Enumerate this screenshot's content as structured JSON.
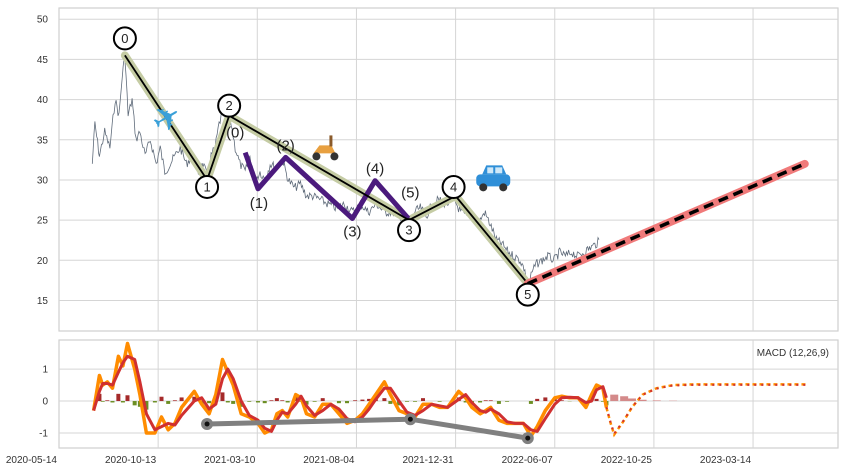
{
  "chart_data": [
    {
      "type": "line",
      "title": "",
      "x_unit": "days since 2020-05-14",
      "xlim": [
        0,
        1140
      ],
      "ylim": [
        11.2,
        51.4
      ],
      "grid": true,
      "x_ticks": [
        {
          "day": 0,
          "label": "2020-05-14"
        },
        {
          "day": 152,
          "label": "2020-10-13"
        },
        {
          "day": 300,
          "label": "2021-03-10"
        },
        {
          "day": 447,
          "label": "2021-08-04"
        },
        {
          "day": 596,
          "label": "2021-12-31"
        },
        {
          "day": 754,
          "label": "2022-06-07"
        },
        {
          "day": 894,
          "label": "2022-10-25"
        },
        {
          "day": 1034,
          "label": "2023-03-14"
        }
      ],
      "y_ticks": [
        15,
        20,
        25,
        30,
        35,
        40,
        45,
        50
      ],
      "price": {
        "color": "#5f6b7a",
        "x": [
          51,
          55,
          62,
          70,
          78,
          86,
          92,
          97,
          101,
          106,
          112,
          118,
          124,
          132,
          140,
          149,
          155,
          162,
          170,
          177,
          185,
          194,
          203,
          212,
          219,
          225,
          231,
          237,
          243,
          249,
          255,
          261,
          267,
          274,
          282,
          289,
          297,
          304,
          312,
          319,
          328,
          337,
          346,
          355,
          364,
          373,
          382,
          394,
          405,
          417,
          429,
          441,
          453,
          465,
          477,
          489,
          501,
          513,
          525,
          534,
          543,
          552,
          561,
          570,
          582,
          594,
          604,
          613,
          623,
          632,
          642,
          651,
          661,
          670,
          680,
          689,
          699,
          705,
          711,
          718,
          724,
          734,
          743,
          753,
          761,
          769,
          778,
          786,
          795,
          803,
          812,
          818
        ],
        "y": [
          32,
          37,
          33,
          36,
          34,
          40,
          38,
          43,
          45.5,
          38,
          40,
          35,
          36,
          33,
          35,
          32,
          34,
          31,
          32,
          33,
          34,
          32,
          33,
          31,
          32,
          30.5,
          33,
          34,
          37,
          38.5,
          37,
          37,
          34,
          32,
          31,
          33,
          30,
          31,
          30,
          32,
          31.5,
          32.5,
          30,
          29,
          29.5,
          28,
          28,
          27.5,
          27,
          26.5,
          27,
          26,
          27,
          26,
          27,
          26,
          26,
          25.5,
          24,
          26,
          26.5,
          25.5,
          27,
          27.5,
          27,
          27.5,
          26,
          25.5,
          26,
          24.5,
          26,
          24.5,
          22.5,
          22,
          21,
          20.5,
          20,
          19,
          16.8,
          18.5,
          19.5,
          20,
          20.5,
          20,
          21,
          20.5,
          21,
          20.5,
          21,
          21.5,
          22,
          22.5
        ]
      },
      "main_wave": {
        "color": "#000000",
        "highlight": "#c5cca4",
        "points": [
          {
            "label": "0",
            "day": 101,
            "value": 45.5
          },
          {
            "label": "1",
            "day": 225,
            "value": 30.0
          },
          {
            "label": "2",
            "day": 258,
            "value": 38.0
          },
          {
            "label": "3",
            "day": 526,
            "value": 25.0
          },
          {
            "label": "4",
            "day": 596,
            "value": 28.0
          },
          {
            "label": "5",
            "day": 711,
            "value": 17.1
          }
        ]
      },
      "sub_wave": {
        "color": "#4b1a7d",
        "points": [
          {
            "label": "(0)",
            "day": 282,
            "value": 33.4
          },
          {
            "label": "(1)",
            "day": 301,
            "value": 28.9
          },
          {
            "label": "(2)",
            "day": 342,
            "value": 32.8
          },
          {
            "label": "(3)",
            "day": 441,
            "value": 25.2
          },
          {
            "label": "(4)",
            "day": 475,
            "value": 29.9
          },
          {
            "label": "(5)",
            "day": 525,
            "value": 25.2
          }
        ]
      },
      "projection": {
        "color": "#f07a7a",
        "dash_color": "#000000",
        "start": {
          "day": 711,
          "value": 17.1
        },
        "end": {
          "day": 1107,
          "value": 32.0
        }
      },
      "markers": [
        {
          "icon": "airplane-icon",
          "day": 166,
          "value": 37.5
        },
        {
          "icon": "scooter-icon",
          "day": 401,
          "value": 33.8
        },
        {
          "icon": "car-icon",
          "day": 656,
          "value": 30.2
        }
      ]
    },
    {
      "type": "line",
      "title": "MACD (12,26,9)",
      "x_unit": "days since 2020-05-14",
      "ylim": [
        -1.47,
        1.91
      ],
      "y_ticks": [
        -1,
        0,
        1
      ],
      "grid": true,
      "macd_color": "#ff8c00",
      "signal_color": "#d03030",
      "hist_pos_color": "#a52a2a",
      "hist_neg_color": "#6b8e23",
      "x": [
        53,
        62,
        67,
        74,
        82,
        91,
        98,
        105,
        116,
        124,
        134,
        147,
        157,
        167,
        177,
        187,
        206,
        217,
        228,
        238,
        248,
        256,
        264,
        276,
        288,
        301,
        311,
        321,
        329,
        337,
        345,
        357,
        365,
        373,
        385,
        397,
        409,
        421,
        433,
        445,
        456,
        466,
        476,
        489,
        498,
        511,
        523,
        535,
        547,
        560,
        572,
        584,
        601,
        612,
        622,
        635,
        644,
        652,
        665,
        678,
        691,
        704,
        716,
        726,
        739,
        754,
        764,
        775,
        787,
        798,
        806,
        813,
        822,
        827
      ],
      "macd": [
        -0.3,
        0.8,
        0.5,
        0.6,
        0.4,
        1.4,
        1.1,
        1.8,
        1.0,
        0.2,
        -1.0,
        -1.0,
        -0.5,
        -0.9,
        -0.7,
        -0.2,
        0.3,
        -0.1,
        -0.4,
        0.2,
        1.3,
        0.9,
        0.5,
        -0.4,
        -0.5,
        -0.7,
        -1.0,
        -0.9,
        -0.4,
        -0.3,
        -0.5,
        0.2,
        0.1,
        -0.4,
        -0.5,
        -0.1,
        -0.1,
        -0.4,
        -0.7,
        -0.6,
        -0.4,
        -0.1,
        0.2,
        0.6,
        0.2,
        -0.3,
        -0.4,
        -0.5,
        -0.1,
        -0.1,
        -0.2,
        -0.2,
        0.3,
        0.1,
        -0.2,
        -0.4,
        -0.3,
        -0.2,
        -0.6,
        -0.7,
        -0.7,
        -0.7,
        -1.1,
        -0.8,
        -0.3,
        0.1,
        0.15,
        0.1,
        0.1,
        -0.2,
        0.2,
        0.5,
        0.4,
        -0.2
      ],
      "signal": [
        -0.3,
        0.3,
        0.55,
        0.55,
        0.5,
        0.9,
        1.2,
        1.4,
        1.3,
        0.6,
        -0.4,
        -0.9,
        -0.8,
        -0.7,
        -0.75,
        -0.45,
        0.0,
        0.1,
        -0.25,
        -0.1,
        0.7,
        1.0,
        0.7,
        0.0,
        -0.45,
        -0.6,
        -0.85,
        -0.95,
        -0.6,
        -0.35,
        -0.4,
        -0.1,
        0.15,
        -0.15,
        -0.45,
        -0.3,
        -0.1,
        -0.25,
        -0.55,
        -0.65,
        -0.5,
        -0.25,
        0.05,
        0.4,
        0.4,
        0.0,
        -0.35,
        -0.45,
        -0.3,
        -0.1,
        -0.15,
        -0.2,
        0.05,
        0.2,
        -0.05,
        -0.3,
        -0.35,
        -0.25,
        -0.4,
        -0.65,
        -0.7,
        -0.7,
        -0.9,
        -0.95,
        -0.55,
        -0.1,
        0.1,
        0.12,
        0.1,
        -0.05,
        0.0,
        0.35,
        0.45,
        0.1
      ],
      "projection": {
        "x": [
          827,
          833,
          838,
          852,
          863,
          878,
          898,
          921,
          951,
          1111
        ],
        "macd": [
          -0.2,
          -0.7,
          -1.05,
          -0.6,
          -0.2,
          0.2,
          0.4,
          0.5,
          0.52,
          0.52
        ],
        "hist_color": "#d48a8a",
        "hist_x": [
          838,
          852,
          863,
          878,
          898,
          921
        ],
        "hist": [
          0.2,
          0.15,
          0.08,
          0.04,
          0.02,
          0.01
        ]
      },
      "divergence": {
        "color": "#808080",
        "points": [
          {
            "day": 225,
            "value": -0.72
          },
          {
            "day": 528,
            "value": -0.57
          },
          {
            "day": 711,
            "value": -1.16
          }
        ]
      }
    }
  ]
}
